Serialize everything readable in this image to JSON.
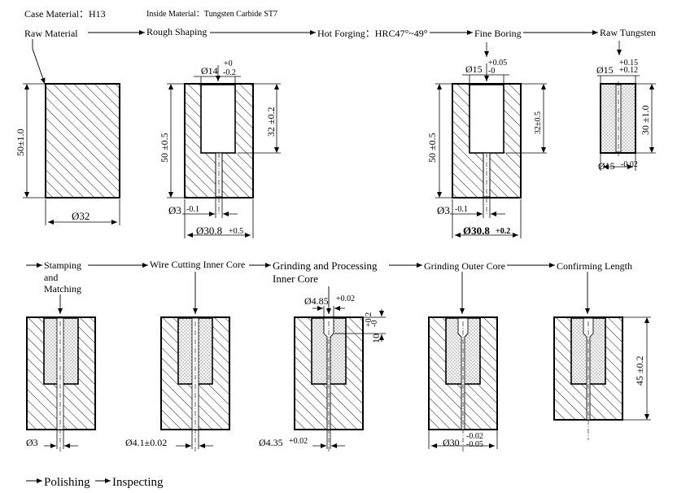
{
  "header": {
    "case_material": "Case Material：H13",
    "inside_material": "Inside Material：Tungsten Carbide ST7"
  },
  "top_flow": {
    "raw_material": "Raw Material",
    "rough_shaping": "Rough Shaping",
    "hot_forging": "Hot Forging：HRC47°~49°",
    "fine_boring": "Fine Boring",
    "raw_tungsten": "Raw Tungsten"
  },
  "bottom_flow": {
    "stamping_line1": "Stamping",
    "stamping_line2": "and",
    "stamping_line3": "Matching",
    "wire_cutting": "Wire Cutting Inner Core",
    "grinding_inner_line1": "Grinding and Processing",
    "grinding_inner_line2": "Inner Core",
    "grinding_outer": "Grinding Outer Core",
    "confirming_length": "Confirming Length"
  },
  "final_steps": {
    "polishing": "Polishing",
    "inspecting": "Inspecting"
  },
  "dims": {
    "raw_height": "50±1.0",
    "raw_diameter": "Ø32",
    "rough_top": "Ø14",
    "rough_top_plus": "+0",
    "rough_top_minus": "-0.2",
    "rough_height": "50 ±0.5",
    "rough_depth": "32 ±0.2",
    "rough_hole": "Ø3",
    "rough_hole_tol": "-0.1",
    "rough_outer": "Ø30.8",
    "rough_outer_tol": "+0.5",
    "fine_top": "Ø15",
    "fine_top_plus": "+0.05",
    "fine_top_minus": "-0",
    "fine_height": "50 ±0.5",
    "fine_depth": "32±0.5",
    "fine_hole": "Ø3",
    "fine_hole_tol": "-0.1",
    "fine_outer": "Ø30.8",
    "fine_outer_tol": "+0.2",
    "tung_top": "Ø15",
    "tung_top_plus": "+0.15",
    "tung_top_minus": "+0.12",
    "tung_height": "30 ±1.0",
    "tung_bottom": "Ø15",
    "tung_bottom_tol": "-0.02",
    "stamp_hole": "Ø3",
    "wire_hole": "Ø4.1±0.02",
    "grind_top": "Ø4.85",
    "grind_top_tol": "+0.02",
    "grind_depth": "10",
    "grind_depth_plus": "+0.2",
    "grind_depth_minus": "-0",
    "grind_hole": "Ø4.35",
    "grind_hole_tol": "+0.02",
    "outer_dia": "Ø30",
    "outer_dia_plus": "-0.02",
    "outer_dia_minus": "-0.05",
    "final_height": "45 ±0.2"
  }
}
